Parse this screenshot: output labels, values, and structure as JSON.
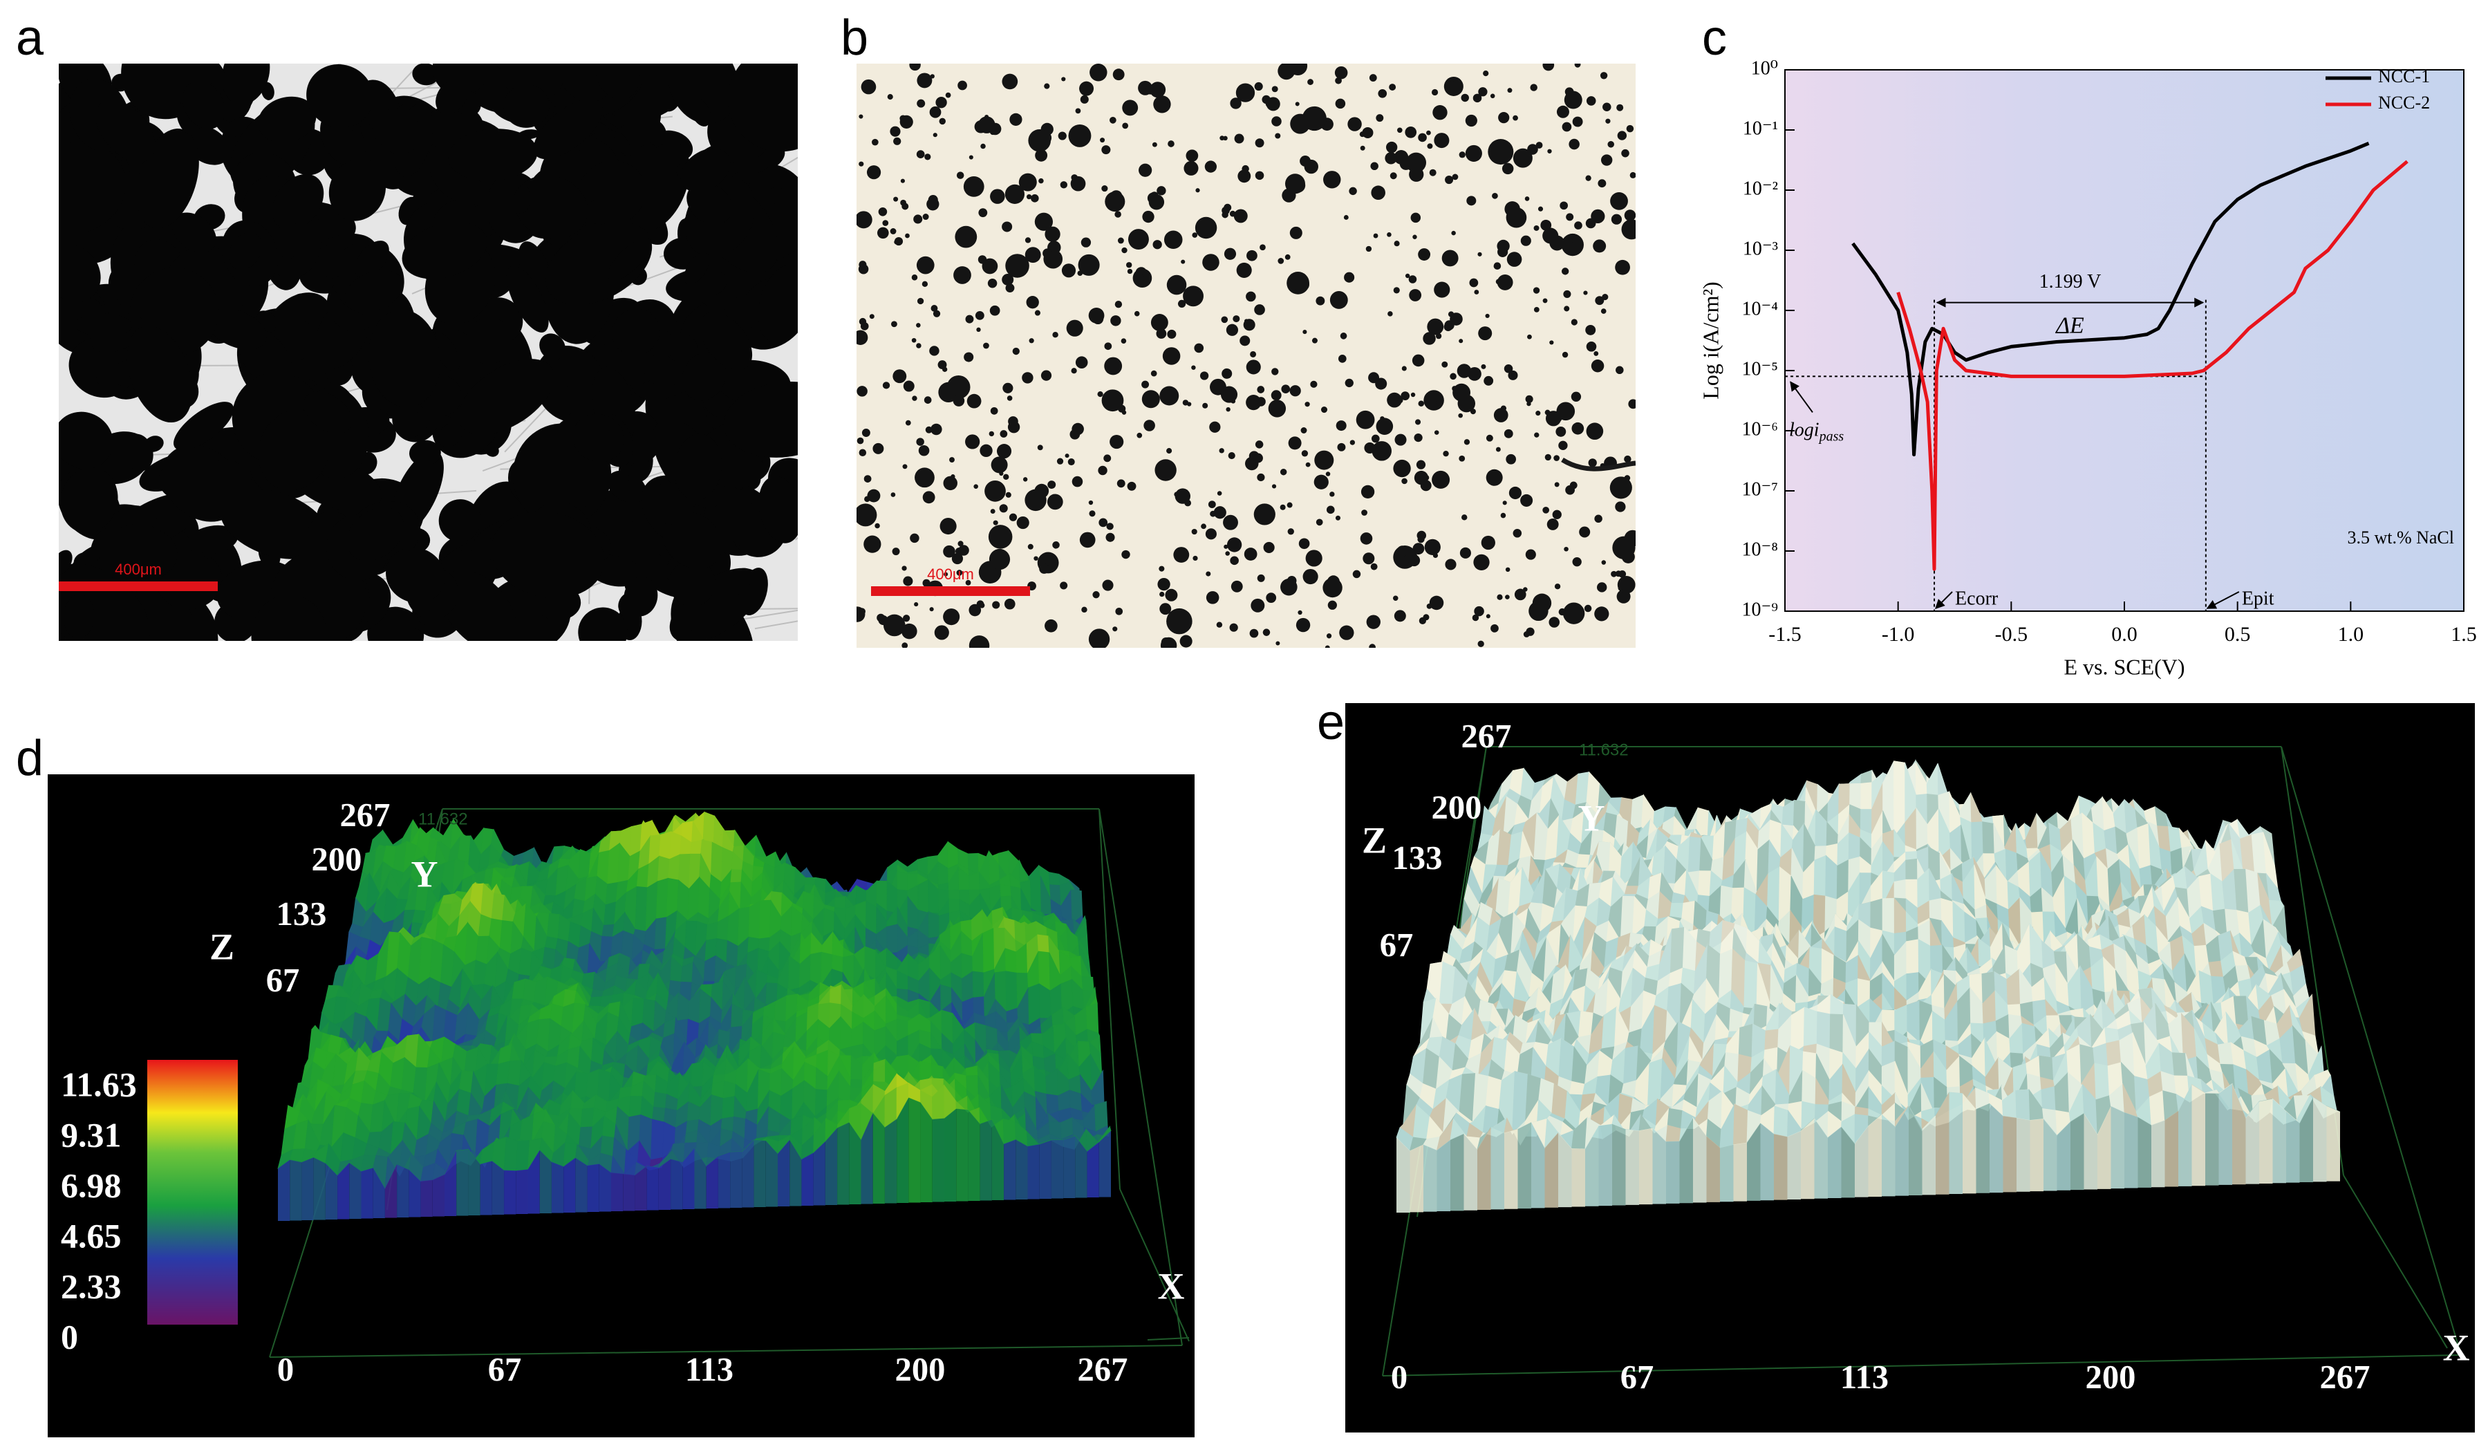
{
  "panels": {
    "a": {
      "label": "a",
      "scale_bar": "400μm"
    },
    "b": {
      "label": "b",
      "scale_bar": "400μm"
    },
    "c": {
      "label": "c"
    },
    "d": {
      "label": "d",
      "z_axis": "Z",
      "y_axis": "Y",
      "x_axis": "X",
      "y_ticks": [
        67,
        133,
        200,
        267
      ],
      "x_ticks": [
        0,
        67,
        113,
        200,
        267
      ],
      "box_label": "11.632",
      "colorbar": [
        11.63,
        9.31,
        6.98,
        4.65,
        2.33,
        0
      ]
    },
    "e": {
      "label": "e",
      "z_axis": "Z",
      "y_axis": "Y",
      "x_axis": "X",
      "y_ticks": [
        67,
        133,
        200,
        267
      ],
      "x_ticks": [
        0,
        67,
        113,
        200,
        267
      ],
      "box_label": "11.632"
    }
  },
  "chart_data": {
    "type": "line",
    "x_label": "E vs. SCE(V)",
    "y_label": "Log i(A/cm²)",
    "log_y": true,
    "legend": "upper right",
    "xlim": [
      -1.5,
      1.5
    ],
    "xticks": [
      -1.5,
      {
        "value": -1,
        "label": "-1.0"
      },
      -0.5,
      {
        "value": 0,
        "label": "0.0"
      },
      0.5,
      {
        "value": 1,
        "label": "1.0"
      },
      1.5
    ],
    "ylim": [
      1e-09,
      1
    ],
    "yticks": [
      {
        "value": 1e-09,
        "label": "10⁻⁹"
      },
      {
        "value": 1e-08,
        "label": "10⁻⁸"
      },
      {
        "value": 1e-07,
        "label": "10⁻⁷"
      },
      {
        "value": 1e-06,
        "label": "10⁻⁶"
      },
      {
        "value": 1e-05,
        "label": "10⁻⁵"
      },
      {
        "value": 0.0001,
        "label": "10⁻⁴"
      },
      {
        "value": 0.001,
        "label": "10⁻³"
      },
      {
        "value": 0.01,
        "label": "10⁻²"
      },
      {
        "value": 0.1,
        "label": "10⁻¹"
      },
      {
        "value": 1,
        "label": "10⁰"
      }
    ],
    "series": [
      {
        "name": "NCC-1",
        "color": "#000000",
        "x": [
          -1.2,
          -1.1,
          -1.0,
          -0.96,
          -0.94,
          -0.93,
          -0.91,
          -0.88,
          -0.85,
          -0.8,
          -0.75,
          -0.7,
          -0.6,
          -0.5,
          -0.3,
          0.0,
          0.1,
          0.15,
          0.2,
          0.3,
          0.4,
          0.5,
          0.6,
          0.8,
          1.0,
          1.08
        ],
        "values": [
          0.0013,
          0.0004,
          0.0001,
          2e-05,
          4e-06,
          4e-07,
          5e-06,
          3e-05,
          5e-05,
          4e-05,
          2e-05,
          1.5e-05,
          2e-05,
          2.5e-05,
          3e-05,
          3.5e-05,
          4e-05,
          5e-05,
          0.0001,
          0.0006,
          0.003,
          0.007,
          0.012,
          0.025,
          0.045,
          0.06
        ]
      },
      {
        "name": "NCC-2",
        "color": "#e8141c",
        "x": [
          -1.0,
          -0.95,
          -0.9,
          -0.87,
          -0.85,
          -0.84,
          -0.835,
          -0.83,
          -0.8,
          -0.75,
          -0.7,
          -0.5,
          0.0,
          0.3,
          0.35,
          0.45,
          0.55,
          0.65,
          0.75,
          0.8,
          0.9,
          1.0,
          1.1,
          1.25
        ],
        "values": [
          0.0002,
          5e-05,
          1e-05,
          3e-06,
          1e-07,
          5e-09,
          3e-07,
          1e-05,
          5e-05,
          1.5e-05,
          1e-05,
          8e-06,
          8e-06,
          9e-06,
          1e-05,
          2e-05,
          5e-05,
          0.0001,
          0.0002,
          0.0005,
          0.001,
          0.003,
          0.01,
          0.03
        ]
      }
    ],
    "reference_lines": {
      "ecorr": -0.84,
      "epit": 0.36,
      "ipass": 8e-06,
      "top": 0.00015
    },
    "annotations": {
      "delta_value": "1.199 V",
      "delta_symbol": "ΔE",
      "ipass": "logi",
      "ipass_sub": "pass",
      "ecorr": "Ecorr",
      "epit": "Epit",
      "medium": "3.5 wt.% NaCl"
    }
  }
}
